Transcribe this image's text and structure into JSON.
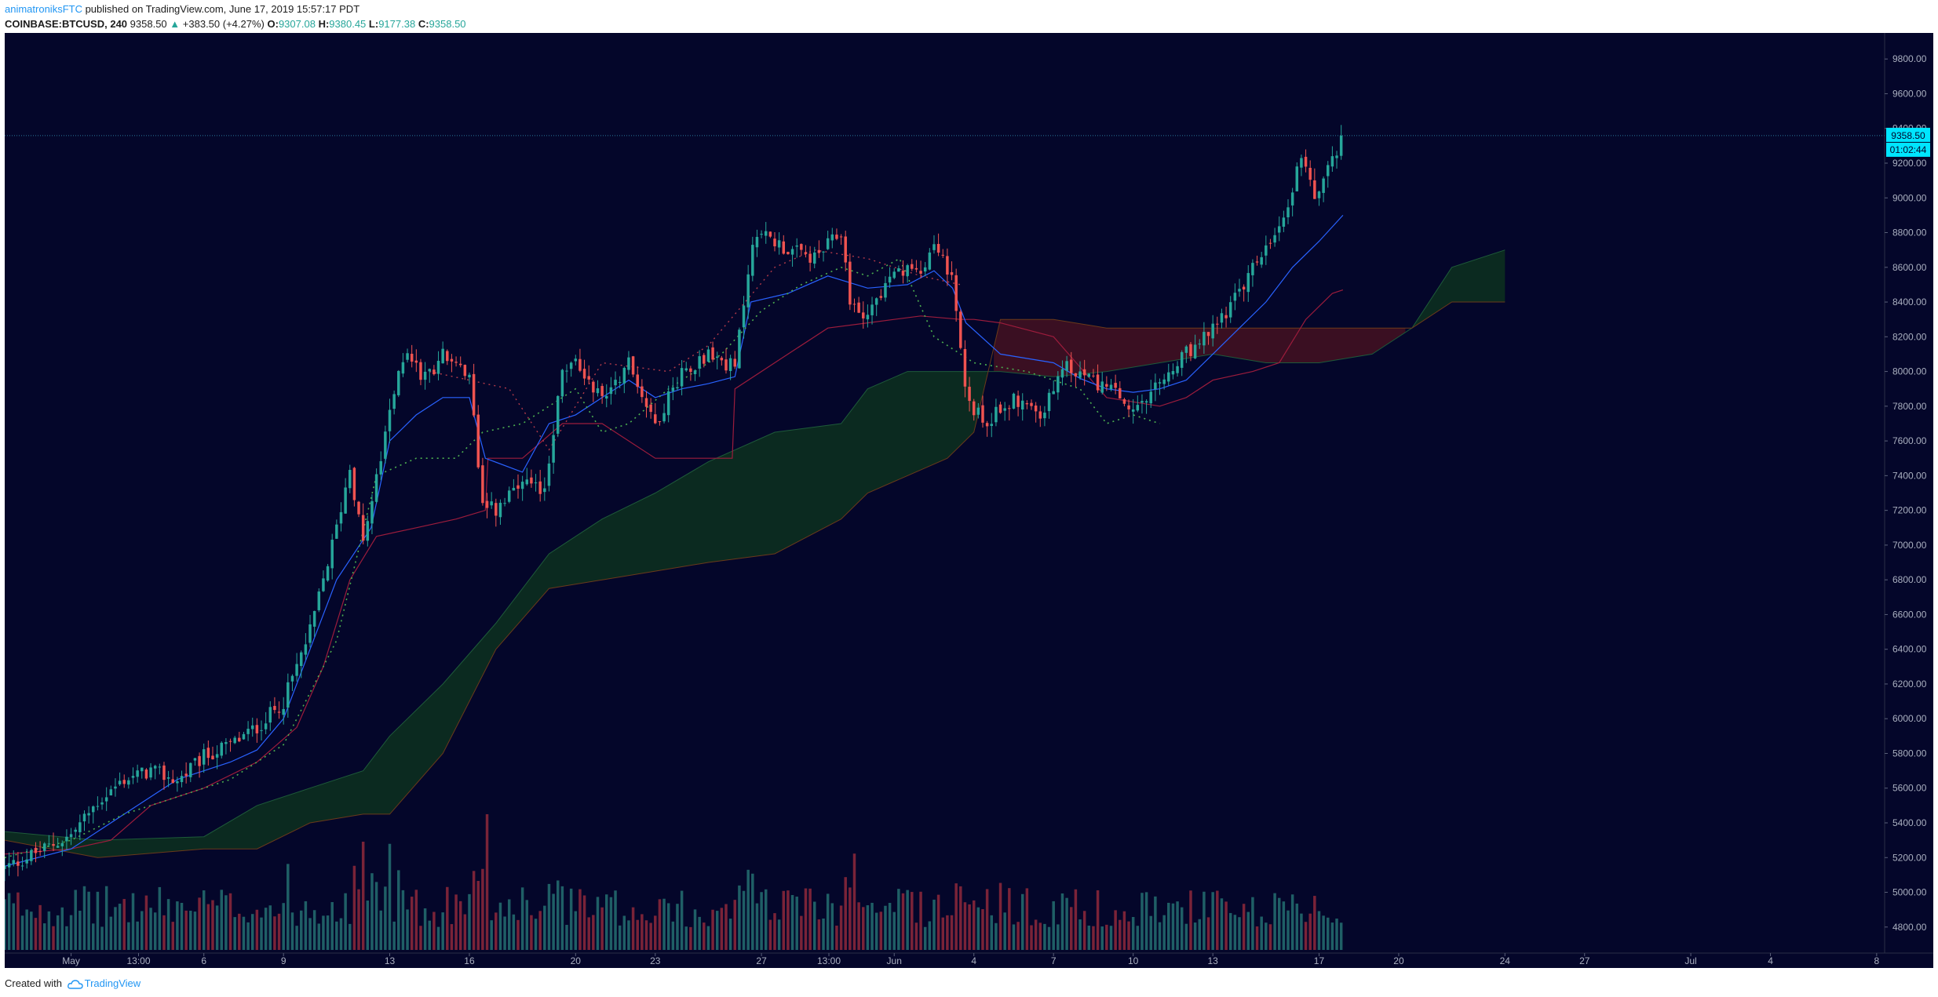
{
  "header": {
    "author": "animatroniksFTC",
    "published_text": " published on TradingView.com, June 17, 2019 15:57:17 PDT",
    "symbol": "COINBASE:BTCUSD, 240",
    "last": "9358.50",
    "change_arrow": "▲",
    "change": "+383.50 (+4.27%)",
    "open_label": "O:",
    "open": "9307.08",
    "high_label": "H:",
    "high": "9380.45",
    "low_label": "L:",
    "low": "9177.38",
    "close_label": "C:",
    "close": "9358.50"
  },
  "footer": {
    "created_with": "Created with",
    "brand": "TradingView",
    "logo_icon": "tradingview-cloud-icon"
  },
  "colors": {
    "background": "#04062a",
    "up": "#26a69a",
    "down": "#ef5350",
    "up_volume": "#1f5f66",
    "down_volume": "#7a2338",
    "tenkan": "#2962ff",
    "kijun": "#9c1c3c",
    "lagging": "#4caf50",
    "cloud_bull": "#0b2a20",
    "cloud_bear": "#3a0f22",
    "price_tag": "#00e5ff",
    "axis_text": "#aab0c0"
  },
  "chart_data": {
    "type": "candlestick",
    "title": "COINBASE:BTCUSD, 240",
    "ylim": [
      4650,
      9950
    ],
    "y_ticks": [
      4800,
      5000,
      5200,
      5400,
      5600,
      5800,
      6000,
      6200,
      6400,
      6600,
      6800,
      7000,
      7200,
      7400,
      7600,
      7800,
      8000,
      8200,
      8400,
      8600,
      8800,
      9000,
      9200,
      9400,
      9600,
      9800
    ],
    "y_tick_labels": [
      "4800.00",
      "5000.00",
      "5200.00",
      "5400.00",
      "5600.00",
      "5800.00",
      "6000.00",
      "6200.00",
      "6400.00",
      "6600.00",
      "6800.00",
      "7000.00",
      "7200.00",
      "7400.00",
      "7600.00",
      "7800.00",
      "8000.00",
      "8200.00",
      "8400.00",
      "8600.00",
      "8800.00",
      "9000.00",
      "9200.00",
      "9400.00",
      "9600.00",
      "9800.00"
    ],
    "x_range_days": [
      0,
      39.8
    ],
    "x_ticks": [
      {
        "label": "May",
        "day": 1
      },
      {
        "label": "13:00",
        "day": 3.54
      },
      {
        "label": "6",
        "day": 6
      },
      {
        "label": "9",
        "day": 9
      },
      {
        "label": "13",
        "day": 13
      },
      {
        "label": "16",
        "day": 16
      },
      {
        "label": "20",
        "day": 20
      },
      {
        "label": "23",
        "day": 23
      },
      {
        "label": "27",
        "day": 27
      },
      {
        "label": "13:00",
        "day": 29.54
      },
      {
        "label": "Jun",
        "day": 32
      },
      {
        "label": "4",
        "day": 35
      },
      {
        "label": "7",
        "day": 38
      },
      {
        "label": "10",
        "day": 41
      },
      {
        "label": "13",
        "day": 44
      },
      {
        "label": "17",
        "day": 48
      },
      {
        "label": "20",
        "day": 51
      },
      {
        "label": "24",
        "day": 55
      },
      {
        "label": "27",
        "day": 58
      },
      {
        "label": "Jul",
        "day": 62
      },
      {
        "label": "4",
        "day": 65
      },
      {
        "label": "8",
        "day": 69
      }
    ],
    "x_domain_days": [
      -1.5,
      69.3
    ],
    "bars_per_day": 6,
    "close_keypoints": [
      [
        -1.5,
        5140
      ],
      [
        0,
        5250
      ],
      [
        1,
        5330
      ],
      [
        2,
        5520
      ],
      [
        3,
        5650
      ],
      [
        4,
        5700
      ],
      [
        5,
        5640
      ],
      [
        6,
        5780
      ],
      [
        7,
        5850
      ],
      [
        8,
        5950
      ],
      [
        9,
        6100
      ],
      [
        10,
        6500
      ],
      [
        11,
        7100
      ],
      [
        11.5,
        7450
      ],
      [
        12,
        7000
      ],
      [
        13,
        7750
      ],
      [
        13.6,
        8150
      ],
      [
        14.3,
        7950
      ],
      [
        15,
        8100
      ],
      [
        16,
        7950
      ],
      [
        16.5,
        7250
      ],
      [
        17,
        7200
      ],
      [
        18,
        7350
      ],
      [
        18.8,
        7300
      ],
      [
        19.5,
        8000
      ],
      [
        20,
        8050
      ],
      [
        21,
        7850
      ],
      [
        22,
        8050
      ],
      [
        23,
        7700
      ],
      [
        24,
        8000
      ],
      [
        25,
        8100
      ],
      [
        26,
        8020
      ],
      [
        26.6,
        8700
      ],
      [
        27,
        8800
      ],
      [
        28,
        8700
      ],
      [
        29,
        8650
      ],
      [
        30,
        8800
      ],
      [
        30.4,
        8350
      ],
      [
        31,
        8350
      ],
      [
        32,
        8550
      ],
      [
        33,
        8600
      ],
      [
        33.6,
        8750
      ],
      [
        34.2,
        8500
      ],
      [
        34.7,
        7850
      ],
      [
        35.4,
        7700
      ],
      [
        36.5,
        7850
      ],
      [
        37.5,
        7750
      ],
      [
        38.5,
        8020
      ],
      [
        39.5,
        7950
      ],
      [
        40.5,
        7850
      ],
      [
        41,
        7750
      ],
      [
        42,
        7920
      ],
      [
        43,
        8100
      ],
      [
        43.5,
        8150
      ],
      [
        44,
        8250
      ],
      [
        45,
        8450
      ],
      [
        45.7,
        8650
      ],
      [
        46.5,
        8800
      ],
      [
        47,
        9050
      ],
      [
        47.4,
        9300
      ],
      [
        47.8,
        8950
      ],
      [
        48.2,
        9150
      ],
      [
        48.6,
        9250
      ],
      [
        48.9,
        9358.5
      ]
    ],
    "kijun_keypoints": [
      [
        -1.5,
        5220
      ],
      [
        1,
        5250
      ],
      [
        2.5,
        5300
      ],
      [
        4,
        5500
      ],
      [
        6,
        5600
      ],
      [
        8,
        5750
      ],
      [
        9.5,
        5950
      ],
      [
        10.5,
        6300
      ],
      [
        11.5,
        6800
      ],
      [
        12.5,
        7050
      ],
      [
        14,
        7100
      ],
      [
        15.5,
        7150
      ],
      [
        16.6,
        7200
      ],
      [
        16.7,
        7500
      ],
      [
        18,
        7500
      ],
      [
        19.5,
        7700
      ],
      [
        21,
        7700
      ],
      [
        23,
        7500
      ],
      [
        25.9,
        7500
      ],
      [
        26,
        7900
      ],
      [
        28,
        8100
      ],
      [
        29.5,
        8250
      ],
      [
        31,
        8280
      ],
      [
        32,
        8300
      ],
      [
        33,
        8320
      ],
      [
        34.5,
        8300
      ],
      [
        35,
        8300
      ],
      [
        36,
        8280
      ],
      [
        38,
        8200
      ],
      [
        40,
        7850
      ],
      [
        42,
        7800
      ],
      [
        43,
        7850
      ],
      [
        44,
        7950
      ],
      [
        45.5,
        8000
      ],
      [
        46.5,
        8050
      ],
      [
        47.5,
        8300
      ],
      [
        48.5,
        8450
      ],
      [
        48.9,
        8470
      ]
    ],
    "tenkan_keypoints": [
      [
        -1.5,
        5150
      ],
      [
        1,
        5250
      ],
      [
        3,
        5450
      ],
      [
        5,
        5650
      ],
      [
        7,
        5750
      ],
      [
        8,
        5820
      ],
      [
        9,
        6000
      ],
      [
        10,
        6400
      ],
      [
        11,
        6800
      ],
      [
        12.3,
        7100
      ],
      [
        13,
        7600
      ],
      [
        14,
        7750
      ],
      [
        15,
        7850
      ],
      [
        16,
        7850
      ],
      [
        16.6,
        7500
      ],
      [
        18,
        7420
      ],
      [
        19,
        7700
      ],
      [
        20,
        7750
      ],
      [
        21,
        7850
      ],
      [
        22,
        7950
      ],
      [
        23,
        7850
      ],
      [
        24,
        7900
      ],
      [
        25,
        7930
      ],
      [
        26,
        7970
      ],
      [
        26.6,
        8400
      ],
      [
        28,
        8450
      ],
      [
        29.5,
        8550
      ],
      [
        31,
        8480
      ],
      [
        32.5,
        8500
      ],
      [
        33.5,
        8580
      ],
      [
        34.2,
        8480
      ],
      [
        34.7,
        8280
      ],
      [
        36,
        8100
      ],
      [
        38,
        8050
      ],
      [
        39,
        7960
      ],
      [
        40,
        7900
      ],
      [
        41,
        7880
      ],
      [
        42,
        7900
      ],
      [
        43,
        7950
      ],
      [
        44,
        8100
      ],
      [
        45,
        8250
      ],
      [
        46,
        8400
      ],
      [
        47,
        8600
      ],
      [
        48,
        8750
      ],
      [
        48.9,
        8900
      ]
    ],
    "lagging_keypoints": [
      [
        -1.5,
        5200
      ],
      [
        1,
        5300
      ],
      [
        3,
        5450
      ],
      [
        5,
        5550
      ],
      [
        7,
        5650
      ],
      [
        9,
        5850
      ],
      [
        11,
        6450
      ],
      [
        12.5,
        7400
      ],
      [
        14,
        7500
      ],
      [
        15.5,
        7500
      ],
      [
        16.5,
        7650
      ],
      [
        18,
        7700
      ],
      [
        20,
        7900
      ],
      [
        21,
        7650
      ],
      [
        22,
        7700
      ],
      [
        23.5,
        7900
      ],
      [
        25.5,
        8100
      ],
      [
        27,
        8350
      ],
      [
        28.5,
        8500
      ],
      [
        30,
        8600
      ],
      [
        31,
        8550
      ],
      [
        32.2,
        8650
      ],
      [
        33.5,
        8200
      ],
      [
        35,
        8050
      ],
      [
        37,
        8000
      ],
      [
        39,
        7900
      ],
      [
        40,
        7700
      ],
      [
        41,
        7750
      ],
      [
        42,
        7700
      ]
    ],
    "cloud_span_a_keypoints": [
      [
        -1.5,
        5350
      ],
      [
        2,
        5300
      ],
      [
        6,
        5320
      ],
      [
        8,
        5500
      ],
      [
        10,
        5600
      ],
      [
        12,
        5700
      ],
      [
        13,
        5900
      ],
      [
        15,
        6200
      ],
      [
        17,
        6550
      ],
      [
        19,
        6950
      ],
      [
        21,
        7150
      ],
      [
        23,
        7300
      ],
      [
        25,
        7480
      ],
      [
        27.5,
        7650
      ],
      [
        30,
        7700
      ],
      [
        31,
        7900
      ],
      [
        32.5,
        8000
      ],
      [
        34,
        8000
      ],
      [
        36,
        8000
      ],
      [
        38,
        7970
      ],
      [
        40,
        8000
      ],
      [
        42,
        8050
      ],
      [
        44,
        8100
      ],
      [
        46,
        8050
      ],
      [
        48,
        8050
      ],
      [
        50,
        8100
      ],
      [
        51.5,
        8250
      ],
      [
        53,
        8600
      ],
      [
        55,
        8700
      ]
    ],
    "cloud_span_b_keypoints": [
      [
        -1.5,
        5300
      ],
      [
        2,
        5200
      ],
      [
        6,
        5250
      ],
      [
        8,
        5250
      ],
      [
        10,
        5400
      ],
      [
        12,
        5450
      ],
      [
        13,
        5450
      ],
      [
        15,
        5800
      ],
      [
        17,
        6400
      ],
      [
        19,
        6750
      ],
      [
        21,
        6800
      ],
      [
        23,
        6850
      ],
      [
        25,
        6900
      ],
      [
        27.5,
        6950
      ],
      [
        30,
        7150
      ],
      [
        31,
        7300
      ],
      [
        32.5,
        7400
      ],
      [
        34,
        7500
      ],
      [
        35,
        7650
      ],
      [
        36,
        8300
      ],
      [
        38,
        8300
      ],
      [
        40,
        8250
      ],
      [
        42,
        8250
      ],
      [
        44,
        8250
      ],
      [
        46,
        8250
      ],
      [
        48,
        8250
      ],
      [
        50,
        8250
      ],
      [
        51.5,
        8250
      ],
      [
        53,
        8400
      ],
      [
        55,
        8400
      ]
    ],
    "volume_scale_max": 5.5,
    "volume_spikes": [
      [
        16.6,
        3.3
      ],
      [
        30.5,
        2.3
      ],
      [
        13,
        2.0
      ],
      [
        12,
        2.0
      ],
      [
        36,
        1.6
      ],
      [
        27,
        1.4
      ],
      [
        47.5,
        0.6
      ],
      [
        48.3,
        0.7
      ],
      [
        14,
        1.3
      ]
    ],
    "last_price_label": "9358.50",
    "countdown_label": "01:02:44",
    "current_price": 9358.5
  }
}
